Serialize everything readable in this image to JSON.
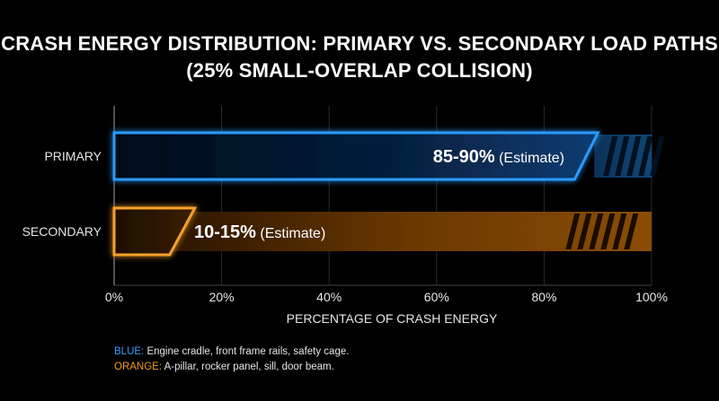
{
  "title_line1": "CRASH ENERGY DISTRIBUTION: PRIMARY VS. SECONDARY LOAD PATHS",
  "title_line2": "(25% SMALL-OVERLAP COLLISION)",
  "colors": {
    "primary": "#1e8fff",
    "secondary": "#f39a1e",
    "background": "#000000"
  },
  "chart_data": {
    "type": "bar",
    "orientation": "horizontal",
    "title": "CRASH ENERGY DISTRIBUTION: PRIMARY VS. SECONDARY LOAD PATHS (25% SMALL-OVERLAP COLLISION)",
    "xlabel": "PERCENTAGE OF CRASH ENERGY",
    "ylabel": "",
    "xlim": [
      0,
      100
    ],
    "ticks": [
      "0%",
      "20%",
      "40%",
      "60%",
      "80%",
      "100%"
    ],
    "tick_values": [
      0,
      20,
      40,
      60,
      80,
      100
    ],
    "categories": [
      "PRIMARY",
      "SECONDARY"
    ],
    "series": [
      {
        "values": [
          [
            85,
            90
          ],
          [
            10,
            15
          ]
        ],
        "labels_strong": [
          "85-90%",
          "10-15%"
        ],
        "labels_note": [
          "(Estimate)",
          "(Estimate)"
        ],
        "colors": [
          "#1e8fff",
          "#f39a1e"
        ]
      }
    ],
    "grid": true,
    "legend": "none"
  },
  "notes": [
    {
      "key": "BLUE:",
      "text": " Engine cradle, front frame rails, safety cage.",
      "color": "#3a9bff"
    },
    {
      "key": "ORANGE:",
      "text": " A-pillar, rocker panel, sill, door beam.",
      "color": "#f39a1e"
    }
  ]
}
